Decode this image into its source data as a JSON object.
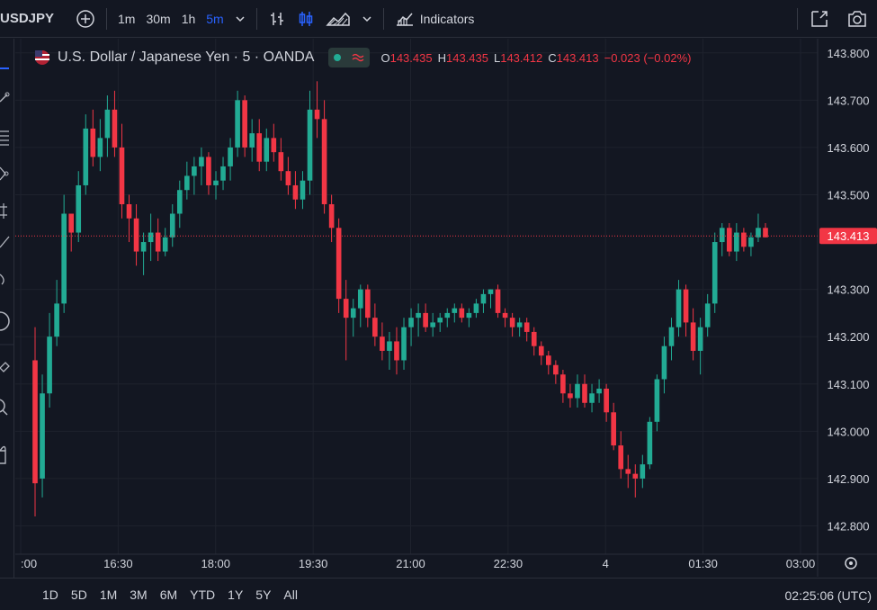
{
  "toolbar": {
    "symbol": "USDJPY",
    "timeframes": [
      {
        "label": "1m",
        "active": false
      },
      {
        "label": "30m",
        "active": false
      },
      {
        "label": "1h",
        "active": false
      },
      {
        "label": "5m",
        "active": true
      }
    ],
    "indicators_label": "Indicators"
  },
  "legend": {
    "title": "U.S. Dollar / Japanese Yen · 5 · OANDA",
    "open_label": "O",
    "open": "143.435",
    "high_label": "H",
    "high": "143.435",
    "low_label": "L",
    "low": "143.412",
    "close_label": "C",
    "close": "143.413",
    "change": "−0.023 (−0.02%)"
  },
  "price_axis": {
    "ticks": [
      "143.800",
      "143.700",
      "143.600",
      "143.500",
      "143.300",
      "143.200",
      "143.100",
      "143.000",
      "142.900",
      "142.800"
    ],
    "last_price": "143.413"
  },
  "time_axis": {
    "ticks": [
      ":00",
      "16:30",
      "18:00",
      "19:30",
      "21:00",
      "22:30",
      "4",
      "01:30",
      "03:00"
    ]
  },
  "bottom": {
    "ranges": [
      "1D",
      "5D",
      "1M",
      "3M",
      "6M",
      "YTD",
      "1Y",
      "5Y",
      "All"
    ],
    "clock": "02:25:06 (UTC)"
  },
  "colors": {
    "up": "#22ab94",
    "down": "#f23645",
    "bg": "#131722",
    "grid": "#1e222d"
  },
  "chart_data": {
    "type": "candlestick",
    "ylim": [
      142.74,
      143.83
    ],
    "candles": [
      [
        143.15,
        143.22,
        142.82,
        142.89
      ],
      [
        142.9,
        143.12,
        142.86,
        143.08
      ],
      [
        143.08,
        143.25,
        143.05,
        143.2
      ],
      [
        143.2,
        143.32,
        143.18,
        143.27
      ],
      [
        143.27,
        143.5,
        143.25,
        143.46
      ],
      [
        143.46,
        143.45,
        143.38,
        143.42
      ],
      [
        143.42,
        143.55,
        143.4,
        143.52
      ],
      [
        143.52,
        143.67,
        143.5,
        143.64
      ],
      [
        143.64,
        143.68,
        143.56,
        143.58
      ],
      [
        143.58,
        143.66,
        143.55,
        143.62
      ],
      [
        143.62,
        143.71,
        143.58,
        143.68
      ],
      [
        143.68,
        143.72,
        143.58,
        143.6
      ],
      [
        143.6,
        143.65,
        143.45,
        143.48
      ],
      [
        143.48,
        143.5,
        143.4,
        143.45
      ],
      [
        143.45,
        143.48,
        143.35,
        143.38
      ],
      [
        143.38,
        143.42,
        143.33,
        143.4
      ],
      [
        143.4,
        143.46,
        143.36,
        143.42
      ],
      [
        143.42,
        143.45,
        143.36,
        143.38
      ],
      [
        143.38,
        143.43,
        143.37,
        143.41
      ],
      [
        143.41,
        143.48,
        143.39,
        143.46
      ],
      [
        143.46,
        143.53,
        143.43,
        143.51
      ],
      [
        143.51,
        143.57,
        143.49,
        143.54
      ],
      [
        143.54,
        143.58,
        143.5,
        143.56
      ],
      [
        143.56,
        143.6,
        143.52,
        143.58
      ],
      [
        143.58,
        143.59,
        143.5,
        143.52
      ],
      [
        143.52,
        143.55,
        143.49,
        143.53
      ],
      [
        143.53,
        143.58,
        143.51,
        143.56
      ],
      [
        143.56,
        143.62,
        143.53,
        143.6
      ],
      [
        143.6,
        143.72,
        143.58,
        143.7
      ],
      [
        143.7,
        143.71,
        143.58,
        143.6
      ],
      [
        143.6,
        143.66,
        143.57,
        143.63
      ],
      [
        143.63,
        143.66,
        143.55,
        143.57
      ],
      [
        143.57,
        143.64,
        143.55,
        143.62
      ],
      [
        143.62,
        143.65,
        143.57,
        143.59
      ],
      [
        143.59,
        143.62,
        143.53,
        143.55
      ],
      [
        143.55,
        143.58,
        143.5,
        143.52
      ],
      [
        143.52,
        143.55,
        143.47,
        143.49
      ],
      [
        143.49,
        143.55,
        143.47,
        143.53
      ],
      [
        143.53,
        143.72,
        143.5,
        143.68
      ],
      [
        143.68,
        143.74,
        143.62,
        143.66
      ],
      [
        143.66,
        143.7,
        143.46,
        143.48
      ],
      [
        143.48,
        143.5,
        143.4,
        143.43
      ],
      [
        143.43,
        143.45,
        143.25,
        143.28
      ],
      [
        143.28,
        143.32,
        143.15,
        143.24
      ],
      [
        143.24,
        143.28,
        143.2,
        143.26
      ],
      [
        143.26,
        143.31,
        143.22,
        143.3
      ],
      [
        143.3,
        143.31,
        143.22,
        143.24
      ],
      [
        143.24,
        143.27,
        143.18,
        143.2
      ],
      [
        143.2,
        143.23,
        143.15,
        143.17
      ],
      [
        143.17,
        143.21,
        143.13,
        143.19
      ],
      [
        143.19,
        143.22,
        143.12,
        143.15
      ],
      [
        143.15,
        143.24,
        143.13,
        143.22
      ],
      [
        143.22,
        143.26,
        143.18,
        143.24
      ],
      [
        143.24,
        143.27,
        143.2,
        143.25
      ],
      [
        143.25,
        143.27,
        143.21,
        143.22
      ],
      [
        143.22,
        143.25,
        143.2,
        143.23
      ],
      [
        143.23,
        143.25,
        143.21,
        143.24
      ],
      [
        143.24,
        143.26,
        143.22,
        143.25
      ],
      [
        143.25,
        143.27,
        143.23,
        143.26
      ],
      [
        143.26,
        143.27,
        143.23,
        143.24
      ],
      [
        143.24,
        143.26,
        143.22,
        143.25
      ],
      [
        143.25,
        143.28,
        143.24,
        143.27
      ],
      [
        143.27,
        143.3,
        143.25,
        143.29
      ],
      [
        143.29,
        143.3,
        143.26,
        143.3
      ],
      [
        143.3,
        143.31,
        143.24,
        143.25
      ],
      [
        143.25,
        143.26,
        143.22,
        143.24
      ],
      [
        143.24,
        143.25,
        143.2,
        143.22
      ],
      [
        143.22,
        143.24,
        143.2,
        143.23
      ],
      [
        143.23,
        143.24,
        143.19,
        143.21
      ],
      [
        143.21,
        143.22,
        143.16,
        143.18
      ],
      [
        143.18,
        143.19,
        143.14,
        143.16
      ],
      [
        143.16,
        143.17,
        143.12,
        143.14
      ],
      [
        143.14,
        143.15,
        143.1,
        143.12
      ],
      [
        143.12,
        143.13,
        143.06,
        143.08
      ],
      [
        143.08,
        143.1,
        143.05,
        143.07
      ],
      [
        143.07,
        143.12,
        143.05,
        143.1
      ],
      [
        143.1,
        143.12,
        143.05,
        143.06
      ],
      [
        143.06,
        143.1,
        143.04,
        143.08
      ],
      [
        143.08,
        143.11,
        143.06,
        143.09
      ],
      [
        143.09,
        143.1,
        143.02,
        143.04
      ],
      [
        143.04,
        143.06,
        142.96,
        142.97
      ],
      [
        142.97,
        143.0,
        142.9,
        142.92
      ],
      [
        142.92,
        142.95,
        142.88,
        142.91
      ],
      [
        142.91,
        142.93,
        142.86,
        142.9
      ],
      [
        142.9,
        142.95,
        142.88,
        142.93
      ],
      [
        142.93,
        143.03,
        142.92,
        143.02
      ],
      [
        143.02,
        143.12,
        143.0,
        143.11
      ],
      [
        143.11,
        143.2,
        143.08,
        143.18
      ],
      [
        143.18,
        143.24,
        143.15,
        143.22
      ],
      [
        143.22,
        143.32,
        143.2,
        143.3
      ],
      [
        143.3,
        143.31,
        143.2,
        143.23
      ],
      [
        143.23,
        143.26,
        143.15,
        143.17
      ],
      [
        143.17,
        143.24,
        143.12,
        143.22
      ],
      [
        143.22,
        143.29,
        143.2,
        143.27
      ],
      [
        143.27,
        143.42,
        143.25,
        143.4
      ],
      [
        143.4,
        143.44,
        143.37,
        143.43
      ],
      [
        143.43,
        143.44,
        143.37,
        143.38
      ],
      [
        143.38,
        143.44,
        143.36,
        143.42
      ],
      [
        143.42,
        143.43,
        143.38,
        143.39
      ],
      [
        143.39,
        143.42,
        143.37,
        143.41
      ],
      [
        143.41,
        143.46,
        143.4,
        143.43
      ],
      [
        143.43,
        143.44,
        143.41,
        143.41
      ]
    ]
  }
}
